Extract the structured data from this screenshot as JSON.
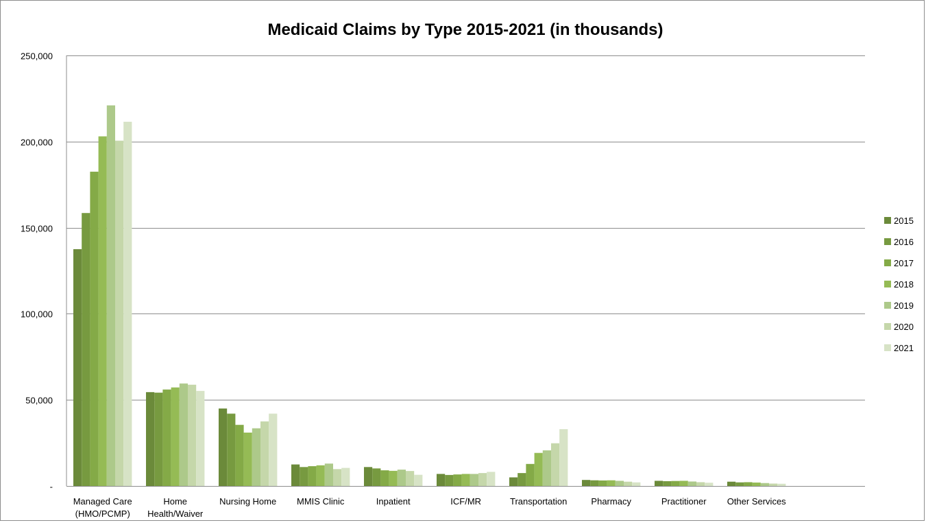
{
  "chart_data": {
    "type": "bar",
    "title": "Medicaid Claims by Type 2015-2021 (in thousands)",
    "xlabel": "",
    "ylabel": "",
    "ylim": [
      0,
      250000
    ],
    "yticks": [
      {
        "value": 0,
        "label": "-"
      },
      {
        "value": 50000,
        "label": "50,000"
      },
      {
        "value": 100000,
        "label": "100,000"
      },
      {
        "value": 150000,
        "label": "150,000"
      },
      {
        "value": 200000,
        "label": "200,000"
      },
      {
        "value": 250000,
        "label": "250,000"
      }
    ],
    "grid": true,
    "legend_position": "right",
    "categories": [
      [
        "Managed Care",
        "(HMO/PCMP)"
      ],
      [
        "Home",
        "Health/Waiver"
      ],
      [
        "Nursing Home"
      ],
      [
        "MMIS Clinic"
      ],
      [
        "Inpatient"
      ],
      [
        "ICF/MR"
      ],
      [
        "Transportation"
      ],
      [
        "Pharmacy"
      ],
      [
        "Practitioner"
      ],
      [
        "Other Services"
      ]
    ],
    "series": [
      {
        "name": "2015",
        "color": "#6b8a3a",
        "values": [
          137500,
          54500,
          45000,
          12500,
          11000,
          7000,
          5000,
          3500,
          3000,
          2500
        ]
      },
      {
        "name": "2016",
        "color": "#779a40",
        "values": [
          158500,
          54200,
          42000,
          11000,
          10200,
          6400,
          7500,
          3300,
          2800,
          2100
        ]
      },
      {
        "name": "2017",
        "color": "#84aa47",
        "values": [
          182500,
          56000,
          35500,
          11500,
          9100,
          6700,
          12800,
          3200,
          2900,
          2200
        ]
      },
      {
        "name": "2018",
        "color": "#95bb55",
        "values": [
          203000,
          57200,
          31000,
          12000,
          8800,
          7000,
          19200,
          3300,
          3000,
          2000
        ]
      },
      {
        "name": "2019",
        "color": "#adc98a",
        "values": [
          221000,
          59500,
          33500,
          13000,
          9500,
          7000,
          20700,
          3000,
          2600,
          1700
        ]
      },
      {
        "name": "2020",
        "color": "#c5d7aa",
        "values": [
          200500,
          58800,
          37500,
          9800,
          8700,
          7500,
          24800,
          2500,
          2200,
          1400
        ]
      },
      {
        "name": "2021",
        "color": "#d7e3c6",
        "values": [
          211500,
          55200,
          42000,
          10500,
          6500,
          8200,
          33000,
          2100,
          1900,
          1300
        ]
      }
    ]
  }
}
